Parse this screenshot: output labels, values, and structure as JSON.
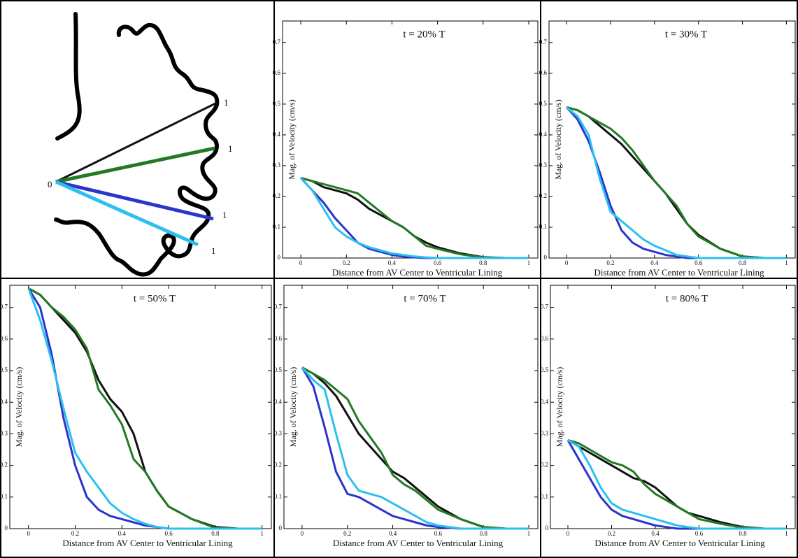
{
  "diagram": {
    "origin": "0",
    "ends": [
      "1",
      "1",
      "1",
      "1"
    ]
  },
  "chart_data": [
    {
      "type": "line",
      "title": "t = 20% T",
      "xlabel": "Distance from AV Center to Ventricular Lining",
      "ylabel": "Mag. of Velocity (cm/s)",
      "xlim": [
        -0.08,
        1.04
      ],
      "ylim": [
        0,
        0.77
      ],
      "xticks": [
        0,
        0.2,
        0.4,
        0.6,
        0.8,
        1
      ],
      "yticks": [
        0,
        0.1,
        0.2,
        0.3,
        0.4,
        0.5,
        0.6,
        0.7
      ],
      "x": [
        0,
        0.05,
        0.1,
        0.15,
        0.2,
        0.25,
        0.3,
        0.35,
        0.4,
        0.45,
        0.5,
        0.55,
        0.6,
        0.7,
        0.8,
        0.9,
        1
      ],
      "series": [
        {
          "color": "#111111",
          "values": [
            0.26,
            0.25,
            0.23,
            0.22,
            0.21,
            0.19,
            0.16,
            0.14,
            0.12,
            0.1,
            0.07,
            0.05,
            0.035,
            0.015,
            0.003,
            0,
            0
          ]
        },
        {
          "color": "#237a23",
          "values": [
            0.26,
            0.25,
            0.24,
            0.23,
            0.22,
            0.21,
            0.18,
            0.15,
            0.12,
            0.1,
            0.07,
            0.04,
            0.03,
            0.012,
            0.002,
            0,
            0
          ]
        },
        {
          "color": "#2a35cc",
          "values": [
            0.26,
            0.22,
            0.18,
            0.13,
            0.09,
            0.05,
            0.03,
            0.02,
            0.01,
            0.005,
            0.002,
            0,
            0,
            0,
            0,
            0,
            0
          ]
        },
        {
          "color": "#2cc0ee",
          "values": [
            0.26,
            0.22,
            0.16,
            0.1,
            0.07,
            0.05,
            0.035,
            0.025,
            0.015,
            0.01,
            0.005,
            0.002,
            0,
            0,
            0,
            0,
            0
          ]
        }
      ]
    },
    {
      "type": "line",
      "title": "t = 30% T",
      "xlabel": "Distance from AV Center to Ventricular Lining",
      "ylabel": "Mag. of Velocity (cm/s)",
      "xlim": [
        -0.08,
        1.04
      ],
      "ylim": [
        0,
        0.77
      ],
      "xticks": [
        0,
        0.2,
        0.4,
        0.6,
        0.8,
        1
      ],
      "yticks": [
        0,
        0.1,
        0.2,
        0.3,
        0.4,
        0.5,
        0.6,
        0.7
      ],
      "x": [
        0,
        0.05,
        0.1,
        0.15,
        0.2,
        0.25,
        0.3,
        0.35,
        0.4,
        0.45,
        0.5,
        0.55,
        0.6,
        0.7,
        0.8,
        0.9,
        1
      ],
      "series": [
        {
          "color": "#111111",
          "values": [
            0.49,
            0.48,
            0.46,
            0.43,
            0.4,
            0.37,
            0.33,
            0.29,
            0.25,
            0.21,
            0.16,
            0.11,
            0.075,
            0.03,
            0.005,
            0,
            0
          ]
        },
        {
          "color": "#237a23",
          "values": [
            0.49,
            0.48,
            0.46,
            0.44,
            0.42,
            0.39,
            0.35,
            0.3,
            0.25,
            0.21,
            0.17,
            0.11,
            0.07,
            0.03,
            0.005,
            0,
            0
          ]
        },
        {
          "color": "#2a35cc",
          "values": [
            0.49,
            0.45,
            0.38,
            0.28,
            0.17,
            0.09,
            0.05,
            0.03,
            0.02,
            0.01,
            0.005,
            0,
            0,
            0,
            0,
            0,
            0
          ]
        },
        {
          "color": "#2cc0ee",
          "values": [
            0.49,
            0.46,
            0.4,
            0.26,
            0.15,
            0.12,
            0.09,
            0.06,
            0.04,
            0.025,
            0.01,
            0.005,
            0,
            0,
            0,
            0,
            0
          ]
        }
      ]
    },
    {
      "type": "line",
      "title": "t = 50% T",
      "xlabel": "Distance from AV Center to Ventricular Lining",
      "ylabel": "Mag. of Velocity (cm/s)",
      "xlim": [
        -0.08,
        1.04
      ],
      "ylim": [
        0,
        0.77
      ],
      "xticks": [
        0,
        0.2,
        0.4,
        0.6,
        0.8,
        1
      ],
      "yticks": [
        0,
        0.1,
        0.2,
        0.3,
        0.4,
        0.5,
        0.6,
        0.7
      ],
      "x": [
        0,
        0.05,
        0.1,
        0.15,
        0.2,
        0.25,
        0.3,
        0.35,
        0.4,
        0.45,
        0.5,
        0.55,
        0.6,
        0.7,
        0.8,
        0.9,
        1
      ],
      "series": [
        {
          "color": "#111111",
          "values": [
            0.76,
            0.74,
            0.7,
            0.66,
            0.62,
            0.56,
            0.47,
            0.41,
            0.37,
            0.3,
            0.18,
            0.12,
            0.07,
            0.03,
            0.005,
            0,
            0
          ]
        },
        {
          "color": "#237a23",
          "values": [
            0.76,
            0.74,
            0.7,
            0.67,
            0.63,
            0.57,
            0.44,
            0.39,
            0.33,
            0.22,
            0.18,
            0.12,
            0.07,
            0.03,
            0.002,
            0,
            0
          ]
        },
        {
          "color": "#2a35cc",
          "values": [
            0.76,
            0.7,
            0.55,
            0.35,
            0.2,
            0.1,
            0.06,
            0.04,
            0.03,
            0.02,
            0.01,
            0.005,
            0,
            0,
            0,
            0,
            0
          ]
        },
        {
          "color": "#2cc0ee",
          "values": [
            0.76,
            0.66,
            0.53,
            0.38,
            0.24,
            0.18,
            0.13,
            0.08,
            0.05,
            0.03,
            0.015,
            0.005,
            0,
            0,
            0,
            0,
            0
          ]
        }
      ]
    },
    {
      "type": "line",
      "title": "t = 70% T",
      "xlabel": "Distance from AV Center to Ventricular Lining",
      "ylabel": "Mag. of Velocity (cm/s)",
      "xlim": [
        -0.08,
        1.04
      ],
      "ylim": [
        0,
        0.77
      ],
      "xticks": [
        0,
        0.2,
        0.4,
        0.6,
        0.8,
        1
      ],
      "yticks": [
        0,
        0.1,
        0.2,
        0.3,
        0.4,
        0.5,
        0.6,
        0.7
      ],
      "x": [
        0,
        0.05,
        0.1,
        0.15,
        0.2,
        0.25,
        0.3,
        0.35,
        0.4,
        0.45,
        0.5,
        0.55,
        0.6,
        0.7,
        0.8,
        0.9,
        1
      ],
      "series": [
        {
          "color": "#111111",
          "values": [
            0.51,
            0.49,
            0.46,
            0.42,
            0.36,
            0.3,
            0.26,
            0.22,
            0.18,
            0.16,
            0.13,
            0.1,
            0.07,
            0.03,
            0.005,
            0,
            0
          ]
        },
        {
          "color": "#237a23",
          "values": [
            0.51,
            0.49,
            0.47,
            0.44,
            0.41,
            0.34,
            0.29,
            0.24,
            0.17,
            0.14,
            0.12,
            0.09,
            0.06,
            0.03,
            0.005,
            0,
            0
          ]
        },
        {
          "color": "#2a35cc",
          "values": [
            0.51,
            0.45,
            0.32,
            0.18,
            0.11,
            0.1,
            0.08,
            0.06,
            0.04,
            0.03,
            0.02,
            0.01,
            0.005,
            0,
            0,
            0,
            0
          ]
        },
        {
          "color": "#2cc0ee",
          "values": [
            0.51,
            0.47,
            0.44,
            0.3,
            0.17,
            0.12,
            0.11,
            0.1,
            0.08,
            0.06,
            0.04,
            0.02,
            0.01,
            0,
            0,
            0,
            0
          ]
        }
      ]
    },
    {
      "type": "line",
      "title": "t = 80% T",
      "xlabel": "Distance from AV Center to Ventricular Lining",
      "ylabel": "Mag. of Velocity (cm/s)",
      "xlim": [
        -0.08,
        1.04
      ],
      "ylim": [
        0,
        0.77
      ],
      "xticks": [
        0,
        0.2,
        0.4,
        0.6,
        0.8,
        1
      ],
      "yticks": [
        0,
        0.1,
        0.2,
        0.3,
        0.4,
        0.5,
        0.6,
        0.7
      ],
      "x": [
        0,
        0.05,
        0.1,
        0.15,
        0.2,
        0.25,
        0.3,
        0.35,
        0.4,
        0.45,
        0.5,
        0.55,
        0.6,
        0.7,
        0.8,
        0.9,
        1
      ],
      "series": [
        {
          "color": "#111111",
          "values": [
            0.28,
            0.26,
            0.24,
            0.22,
            0.2,
            0.18,
            0.16,
            0.15,
            0.13,
            0.1,
            0.07,
            0.05,
            0.04,
            0.02,
            0.005,
            0,
            0
          ]
        },
        {
          "color": "#237a23",
          "values": [
            0.28,
            0.27,
            0.25,
            0.23,
            0.21,
            0.2,
            0.18,
            0.14,
            0.11,
            0.09,
            0.07,
            0.05,
            0.03,
            0.015,
            0.003,
            0,
            0
          ]
        },
        {
          "color": "#2a35cc",
          "values": [
            0.28,
            0.22,
            0.16,
            0.1,
            0.06,
            0.04,
            0.03,
            0.02,
            0.01,
            0.005,
            0,
            0,
            0,
            0,
            0,
            0,
            0
          ]
        },
        {
          "color": "#2cc0ee",
          "values": [
            0.28,
            0.26,
            0.2,
            0.13,
            0.08,
            0.06,
            0.05,
            0.04,
            0.03,
            0.02,
            0.01,
            0.005,
            0,
            0,
            0,
            0,
            0
          ]
        }
      ]
    }
  ]
}
